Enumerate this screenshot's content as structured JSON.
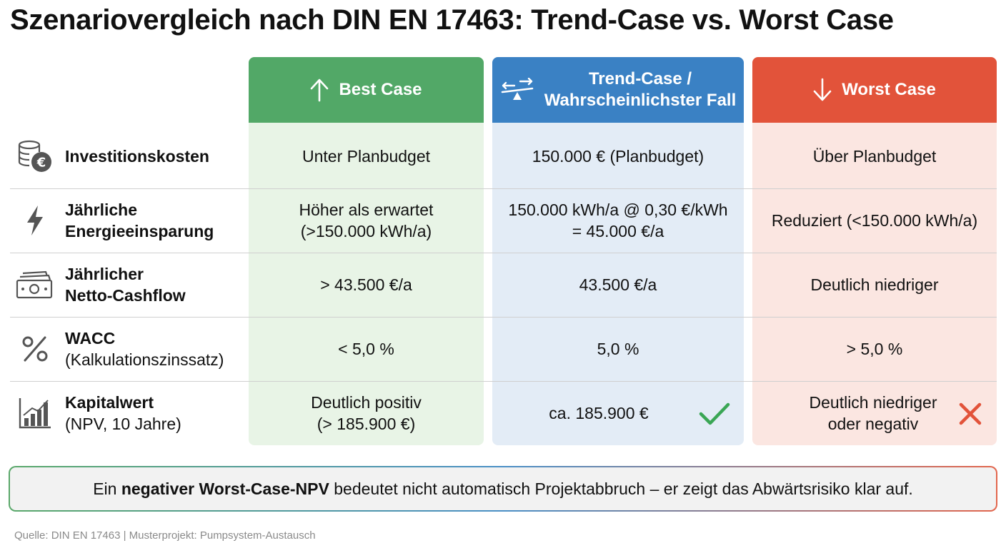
{
  "title": "Szenariovergleich nach DIN EN 17463: Trend-Case vs. Worst Case",
  "columns": {
    "best": {
      "label": "Best Case",
      "icon": "arrow-up-icon",
      "color": "#52a867",
      "bg": "#e8f4e6"
    },
    "trend": {
      "label_line1": "Trend-Case /",
      "label_line2": "Wahrscheinlichster Fall",
      "icon": "balance-scale-icon",
      "color": "#3a81c4",
      "bg": "#e3ecf6"
    },
    "worst": {
      "label": "Worst Case",
      "icon": "arrow-down-icon",
      "color": "#e2533a",
      "bg": "#fbe6e1"
    }
  },
  "rows": [
    {
      "icon": "coins-euro-icon",
      "label_bold": "Investitionskosten",
      "label_normal": "",
      "best": [
        "Unter Planbudget"
      ],
      "trend": [
        "150.000 € (Planbudget)"
      ],
      "worst": [
        "Über Planbudget"
      ]
    },
    {
      "icon": "lightning-bolt-icon",
      "label_bold": "Jährliche",
      "label_bold2": "Energieeinsparung",
      "best": [
        "Höher als erwartet",
        "(>150.000 kWh/a)"
      ],
      "trend": [
        "150.000 kWh/a @ 0,30 €/kWh",
        "= 45.000 €/a"
      ],
      "worst": [
        "Reduziert (<150.000 kWh/a)"
      ]
    },
    {
      "icon": "cash-bills-icon",
      "label_bold": "Jährlicher",
      "label_bold2": "Netto-Cashflow",
      "best": [
        "> 43.500 €/a"
      ],
      "trend": [
        "43.500 €/a"
      ],
      "worst": [
        "Deutlich niedriger"
      ]
    },
    {
      "icon": "percent-icon",
      "label_bold": "WACC",
      "label_normal": "(Kalkulationszinssatz)",
      "best": [
        "< 5,0 %"
      ],
      "trend": [
        "5,0 %"
      ],
      "worst": [
        "> 5,0 %"
      ]
    },
    {
      "icon": "bar-chart-icon",
      "label_bold": "Kapitalwert",
      "label_normal": "(NPV, 10 Jahre)",
      "best": [
        "Deutlich positiv",
        "(> 185.900 €)"
      ],
      "trend": [
        "ca. 185.900 €"
      ],
      "worst": [
        "Deutlich niedriger",
        "oder negativ"
      ]
    }
  ],
  "marks": {
    "trend_npv": "check-icon",
    "worst_npv": "cross-icon",
    "check_color": "#3aa655",
    "cross_color": "#e2533a"
  },
  "note": {
    "pre": "Ein ",
    "bold": "negativer Worst-Case-NPV",
    "post": " bedeutet nicht automatisch Projektabbruch – er zeigt das Abwärtsrisiko klar auf."
  },
  "source": "Quelle: DIN EN 17463 | Musterprojekt: Pumpsystem-Austausch"
}
